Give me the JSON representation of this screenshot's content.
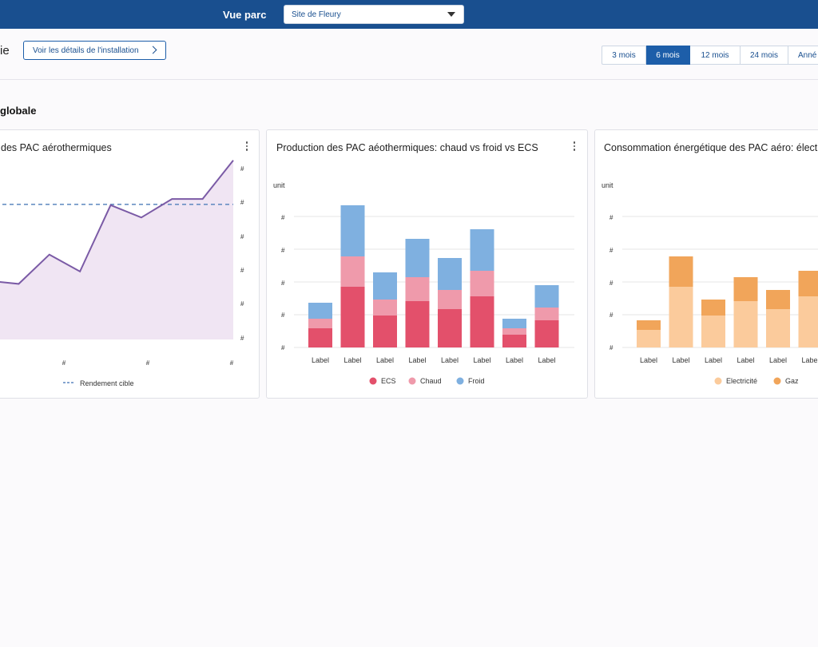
{
  "topbar": {
    "title": "Vue parc",
    "site_select": {
      "selected": "Site de Fleury",
      "icon": "chevron-down-icon"
    }
  },
  "header": {
    "page_title_fragment": "ie",
    "details_button": "Voir les détails de l'installation",
    "periods": [
      {
        "label": "3 mois",
        "active": false
      },
      {
        "label": "6 mois",
        "active": true
      },
      {
        "label": "12  mois",
        "active": false
      },
      {
        "label": "24 mois",
        "active": false
      },
      {
        "label": "Anné",
        "active": false
      }
    ]
  },
  "section": {
    "title": "globale"
  },
  "colors": {
    "brand": "#194f8f",
    "line": "#7b5ba6",
    "area": "#f0e5f3",
    "target": "#5b86bf",
    "ecs": "#e3506b",
    "chaud": "#ef9aab",
    "froid": "#7fb0e0",
    "elec": "#fbcb9c",
    "gaz": "#f1a55a"
  },
  "charts": {
    "rendement": {
      "title": "des PAC aérothermiques",
      "y_ticks": [
        "#",
        "#",
        "#",
        "#",
        "#",
        "#"
      ],
      "x_ticks": [
        "#",
        "#",
        "#"
      ],
      "legend": "Rendement cible"
    },
    "production": {
      "title": "Production des PAC aéothermiques: chaud vs froid vs ECS",
      "unit": "unit",
      "y_ticks": [
        "#",
        "#",
        "#",
        "#",
        "#"
      ],
      "legend": [
        "ECS",
        "Chaud",
        "Froid"
      ]
    },
    "consommation": {
      "title": "Consommation énergétique des PAC aéro: électr",
      "unit": "unit",
      "y_ticks": [
        "#",
        "#",
        "#",
        "#",
        "#"
      ],
      "legend": [
        "Electricité",
        "Gaz"
      ]
    }
  },
  "chart_data": [
    {
      "type": "area",
      "title": "des PAC aérothermiques",
      "series": [
        {
          "values": [
            3.8,
            3.6,
            5.5,
            4.4,
            8.7,
            7.9,
            9.1,
            9.1,
            11.6
          ]
        },
        {
          "name": "Rendement cible",
          "values": [
            8.75,
            8.75,
            8.75,
            8.75,
            8.75,
            8.75,
            8.75,
            8.75,
            8.75
          ]
        }
      ],
      "ylim": [
        0,
        12
      ]
    },
    {
      "type": "bar",
      "title": "Production des PAC aéothermiques: chaud vs froid vs ECS",
      "ylabel": "unit",
      "categories": [
        "Label",
        "Label",
        "Label",
        "Label",
        "Label",
        "Label",
        "Label",
        "Label"
      ],
      "series": [
        {
          "name": "ECS",
          "values": [
            0.6,
            1.9,
            1.0,
            1.45,
            1.2,
            1.6,
            0.4,
            0.85
          ]
        },
        {
          "name": "Chaud",
          "values": [
            0.3,
            0.95,
            0.5,
            0.75,
            0.6,
            0.8,
            0.2,
            0.4
          ]
        },
        {
          "name": "Froid",
          "values": [
            0.5,
            1.6,
            0.85,
            1.2,
            1.0,
            1.3,
            0.3,
            0.7
          ]
        }
      ],
      "ylim": [
        0,
        4.1
      ]
    },
    {
      "type": "bar",
      "title": "Consommation énergétique des PAC aéro: électr",
      "ylabel": "unit",
      "categories": [
        "Label",
        "Label",
        "Label",
        "Label",
        "Label",
        "Label"
      ],
      "series": [
        {
          "name": "Electricité",
          "values": [
            0.55,
            1.9,
            1.0,
            1.45,
            1.2,
            1.6
          ]
        },
        {
          "name": "Gaz",
          "values": [
            0.3,
            0.95,
            0.5,
            0.75,
            0.6,
            0.8
          ]
        }
      ],
      "ylim": [
        0,
        4.1
      ]
    }
  ]
}
